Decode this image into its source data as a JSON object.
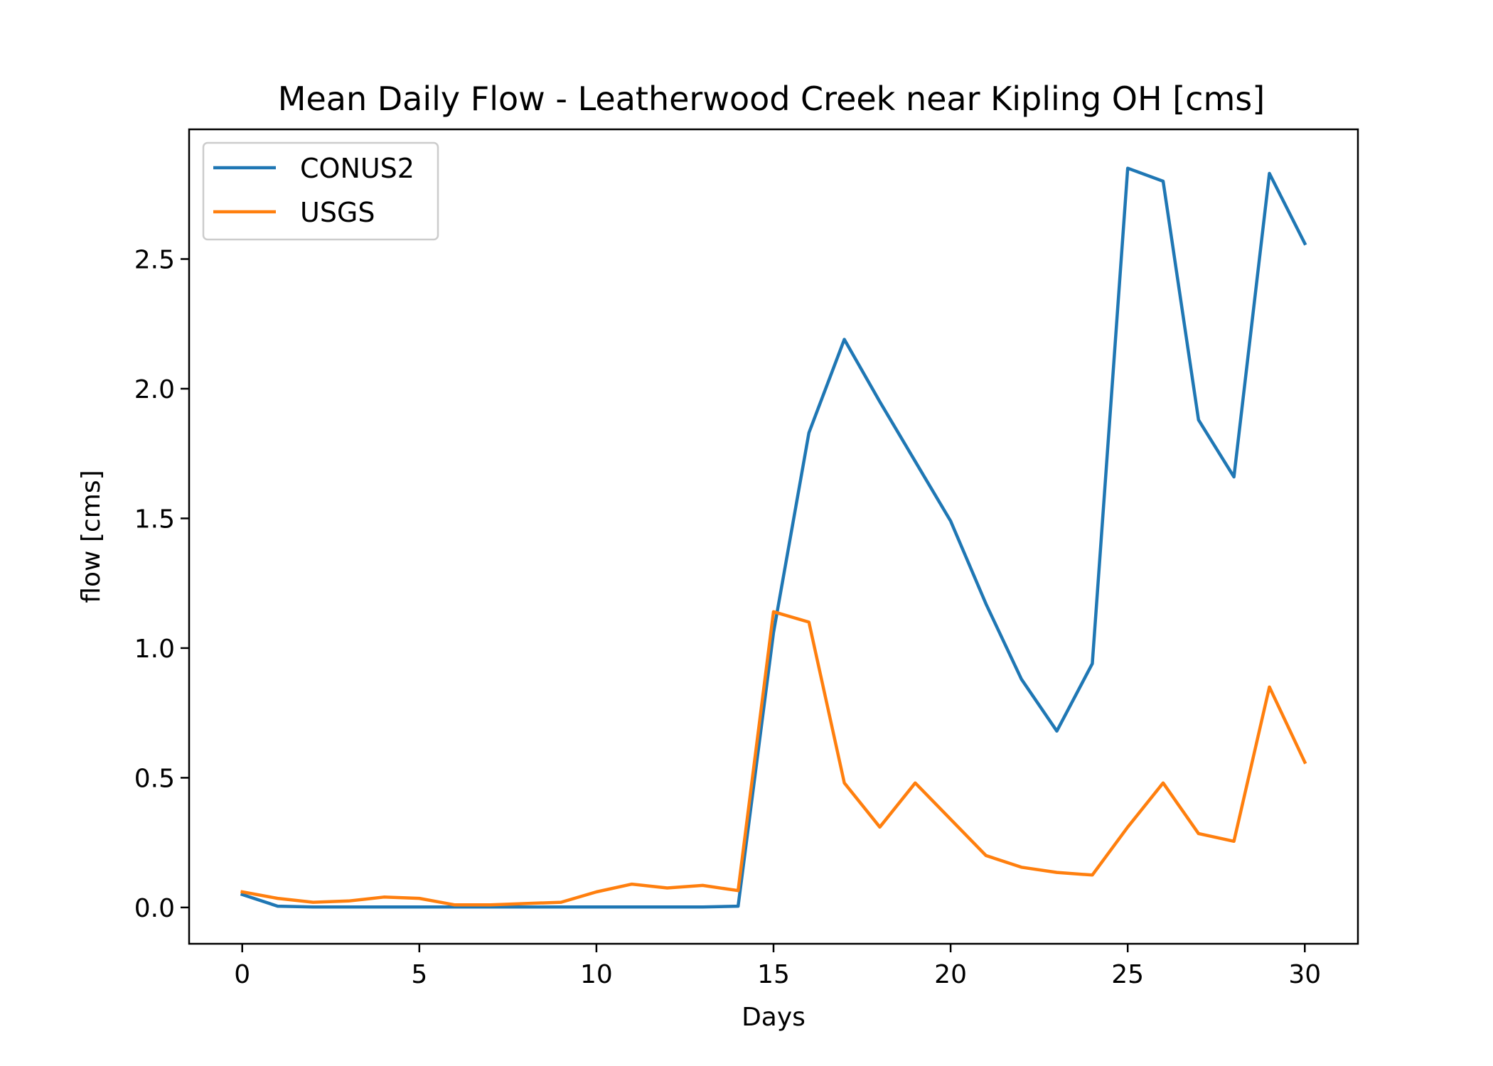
{
  "chart_data": {
    "type": "line",
    "title": "Mean Daily Flow - Leatherwood Creek near Kipling OH [cms]",
    "xlabel": "Days",
    "ylabel": "flow [cms]",
    "xlim": [
      -1.5,
      31.5
    ],
    "ylim": [
      -0.14,
      3.0
    ],
    "xticks": [
      0,
      5,
      10,
      15,
      20,
      25,
      30
    ],
    "yticks": [
      0.0,
      0.5,
      1.0,
      1.5,
      2.0,
      2.5
    ],
    "ytick_labels": [
      "0.0",
      "0.5",
      "1.0",
      "1.5",
      "2.0",
      "2.5"
    ],
    "grid": false,
    "legend_position": "top-left",
    "x": [
      0,
      1,
      2,
      3,
      4,
      5,
      6,
      7,
      8,
      9,
      10,
      11,
      12,
      13,
      14,
      15,
      16,
      17,
      18,
      19,
      20,
      21,
      22,
      23,
      24,
      25,
      26,
      27,
      28,
      29,
      30
    ],
    "series": [
      {
        "name": "CONUS2",
        "color": "#1f77b4",
        "values": [
          0.05,
          0.005,
          0.002,
          0.002,
          0.002,
          0.002,
          0.002,
          0.002,
          0.002,
          0.002,
          0.002,
          0.002,
          0.002,
          0.002,
          0.005,
          1.06,
          1.83,
          2.19,
          1.95,
          1.72,
          1.49,
          1.17,
          0.88,
          0.68,
          0.94,
          2.85,
          2.8,
          1.88,
          1.66,
          2.83,
          2.56
        ]
      },
      {
        "name": "USGS",
        "color": "#ff7f0e",
        "values": [
          0.06,
          0.035,
          0.02,
          0.025,
          0.04,
          0.035,
          0.01,
          0.01,
          0.015,
          0.02,
          0.06,
          0.09,
          0.075,
          0.085,
          0.065,
          1.14,
          1.1,
          0.48,
          0.31,
          0.48,
          0.34,
          0.2,
          0.155,
          0.135,
          0.125,
          0.31,
          0.48,
          0.285,
          0.255,
          0.85,
          0.56
        ]
      }
    ]
  }
}
